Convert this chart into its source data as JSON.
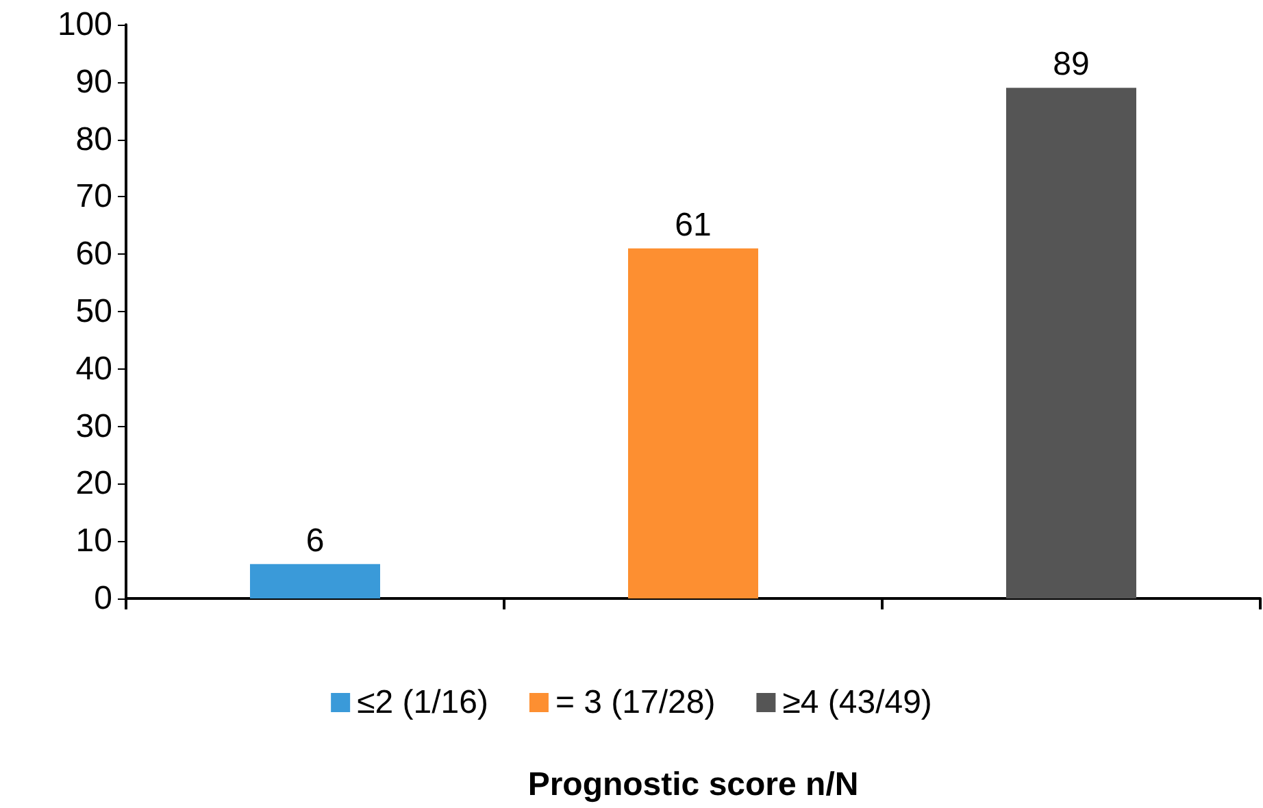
{
  "chart_data": {
    "type": "bar",
    "xlabel": "Prognostic score n/N",
    "categories": [
      null,
      null,
      null
    ],
    "series": [
      {
        "name": "≤2 (1/16)",
        "color": "#3a9ad9",
        "values": [
          6,
          null,
          null
        ]
      },
      {
        "name": "= 3 (17/28)",
        "color": "#fd8f31",
        "values": [
          null,
          61,
          null
        ]
      },
      {
        "name": "≥4 (43/49)",
        "color": "#555555",
        "values": [
          null,
          null,
          89
        ]
      }
    ],
    "ylim": [
      0,
      100
    ],
    "yticks": [
      0,
      10,
      20,
      30,
      40,
      50,
      60,
      70,
      80,
      90,
      100
    ],
    "grid": false,
    "legend": "bottom",
    "data_labels": true
  }
}
